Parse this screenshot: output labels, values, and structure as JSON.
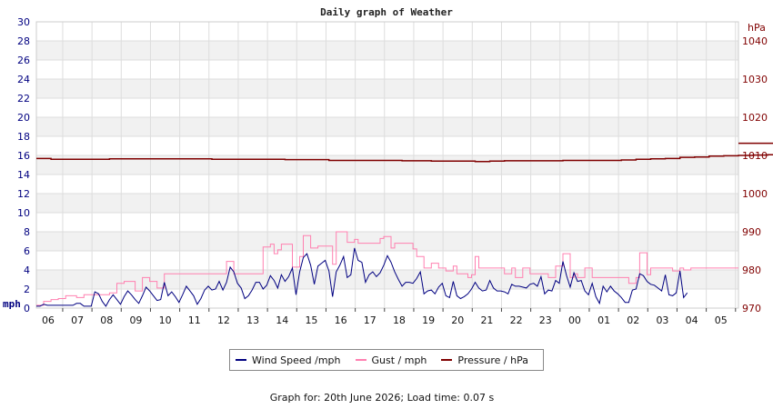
{
  "chart_data": {
    "type": "line",
    "title": "Daily graph of Weather",
    "left_unit": "mph",
    "right_unit": "hPa",
    "ylim_left": [
      0,
      30
    ],
    "yticks_left": [
      0,
      2,
      4,
      6,
      8,
      10,
      12,
      14,
      16,
      18,
      20,
      22,
      24,
      26,
      28,
      30
    ],
    "ylim_right": [
      970,
      1045
    ],
    "yticks_right": [
      970,
      980,
      990,
      1000,
      1010,
      1020,
      1030,
      1040
    ],
    "x_range_hours": [
      0,
      24
    ],
    "x_ticks": [
      "06",
      "07",
      "08",
      "09",
      "10",
      "11",
      "12",
      "13",
      "14",
      "15",
      "16",
      "17",
      "18",
      "19",
      "20",
      "21",
      "22",
      "23",
      "00",
      "01",
      "02",
      "03",
      "04",
      "05"
    ],
    "grid": true,
    "colors": {
      "wind": "#000080",
      "gust": "#ff80b0",
      "pressure": "#800000",
      "axis_left": "#000080",
      "axis_right": "#800000",
      "band": "#f1f1f1",
      "grid": "#dddddd"
    },
    "series": [
      {
        "name": "Wind Speed /mph",
        "axis": "left",
        "x_step_hours": 0.125,
        "values": [
          0.2,
          0.2,
          0.4,
          0.3,
          0.3,
          0.3,
          0.3,
          0.3,
          0.3,
          0.3,
          0.3,
          0.5,
          0.5,
          0.2,
          0.2,
          0.2,
          1.7,
          1.5,
          0.7,
          0.2,
          0.9,
          1.4,
          0.9,
          0.4,
          1.2,
          1.8,
          1.4,
          0.9,
          0.5,
          1.3,
          2.2,
          1.8,
          1.3,
          0.8,
          0.9,
          2.7,
          1.3,
          1.7,
          1.2,
          0.6,
          1.4,
          2.3,
          1.8,
          1.3,
          0.4,
          1.0,
          1.9,
          2.3,
          1.9,
          2.0,
          2.8,
          1.9,
          2.7,
          4.3,
          3.8,
          2.6,
          2.1,
          1.0,
          1.3,
          1.9,
          2.7,
          2.7,
          2.0,
          2.4,
          3.4,
          2.9,
          2.1,
          3.5,
          2.8,
          3.3,
          4.2,
          1.4,
          3.8,
          5.3,
          5.7,
          4.5,
          2.5,
          4.4,
          4.7,
          5.0,
          3.9,
          1.2,
          3.8,
          4.5,
          5.4,
          3.2,
          3.5,
          6.3,
          5.0,
          4.8,
          2.7,
          3.5,
          3.8,
          3.3,
          3.7,
          4.5,
          5.5,
          4.8,
          3.8,
          3.0,
          2.3,
          2.7,
          2.7,
          2.6,
          3.1,
          3.8,
          1.5,
          1.8,
          1.9,
          1.5,
          2.2,
          2.6,
          1.3,
          1.1,
          2.8,
          1.3,
          1.0,
          1.2,
          1.5,
          2.0,
          2.7,
          2.1,
          1.8,
          1.9,
          2.9,
          2.1,
          1.8,
          1.8,
          1.7,
          1.5,
          2.5,
          2.3,
          2.3,
          2.2,
          2.1,
          2.5,
          2.6,
          2.3,
          3.3,
          1.5,
          1.9,
          1.8,
          2.9,
          2.6,
          4.9,
          3.4,
          2.2,
          3.7,
          2.8,
          2.9,
          1.8,
          1.4,
          2.6,
          1.2,
          0.5,
          2.3,
          1.7,
          2.3,
          1.8,
          1.5,
          1.1,
          0.6,
          0.6,
          1.9,
          2.0,
          3.6,
          3.4,
          2.8,
          2.5,
          2.4,
          2.1,
          1.8,
          3.5,
          1.4,
          1.3,
          1.6,
          3.9,
          1.1,
          1.6
        ]
      },
      {
        "name": "Gust / mph",
        "axis": "left",
        "x_step_hours": 0.125,
        "values": [
          0.3,
          0.3,
          0.7,
          0.7,
          0.9,
          0.9,
          1.0,
          1.0,
          1.3,
          1.3,
          1.3,
          1.1,
          1.1,
          1.4,
          1.4,
          1.4,
          1.4,
          1.4,
          1.4,
          1.4,
          1.6,
          1.6,
          2.6,
          2.6,
          2.8,
          2.8,
          2.8,
          1.8,
          1.8,
          3.2,
          3.2,
          2.8,
          2.8,
          2.1,
          2.1,
          3.6,
          3.6,
          3.6,
          3.6,
          3.6,
          3.6,
          3.6,
          3.6,
          3.6,
          3.6,
          3.6,
          3.6,
          3.6,
          3.6,
          3.6,
          3.6,
          3.6,
          4.9,
          4.9,
          3.6,
          3.6,
          3.6,
          3.6,
          3.6,
          3.6,
          3.6,
          3.6,
          6.4,
          6.4,
          6.7,
          5.7,
          6.1,
          6.7,
          6.7,
          6.7,
          4.3,
          4.3,
          5.4,
          7.6,
          7.6,
          6.3,
          6.3,
          6.5,
          6.5,
          6.5,
          6.5,
          4.6,
          8.0,
          8.0,
          8.0,
          6.9,
          6.9,
          7.2,
          6.8,
          6.8,
          6.8,
          6.8,
          6.8,
          6.8,
          7.3,
          7.5,
          7.5,
          6.3,
          6.8,
          6.8,
          6.8,
          6.8,
          6.8,
          6.2,
          5.4,
          5.4,
          4.2,
          4.2,
          4.7,
          4.7,
          4.2,
          4.2,
          3.9,
          3.9,
          4.4,
          3.6,
          3.6,
          3.6,
          3.2,
          3.5,
          5.4,
          4.2,
          4.2,
          4.2,
          4.2,
          4.2,
          4.2,
          4.2,
          3.6,
          3.6,
          4.2,
          3.2,
          3.2,
          4.2,
          4.2,
          3.6,
          3.6,
          3.6,
          3.6,
          3.6,
          3.2,
          3.2,
          4.4,
          4.4,
          5.7,
          5.7,
          3.2,
          3.6,
          3.2,
          3.2,
          4.2,
          4.2,
          3.2,
          3.2,
          3.2,
          3.2,
          3.2,
          3.2,
          3.2,
          3.2,
          3.2,
          3.2,
          2.6,
          2.6,
          3.2,
          5.8,
          5.8,
          3.5,
          4.2,
          4.2,
          4.2,
          4.2,
          4.2,
          4.2,
          3.9,
          3.9,
          4.2,
          4.0,
          4.0,
          4.2,
          4.2
        ]
      },
      {
        "name": "Pressure / hPa",
        "axis": "right",
        "x_step_hours": 0.5,
        "values": [
          1009.2,
          1009.0,
          1009.0,
          1009.0,
          1009.0,
          1009.1,
          1009.1,
          1009.1,
          1009.1,
          1009.1,
          1009.1,
          1009.1,
          1009.0,
          1009.0,
          1009.0,
          1009.0,
          1009.0,
          1008.9,
          1008.9,
          1008.9,
          1008.7,
          1008.7,
          1008.7,
          1008.7,
          1008.7,
          1008.6,
          1008.6,
          1008.5,
          1008.5,
          1008.5,
          1008.4,
          1008.5,
          1008.6,
          1008.6,
          1008.6,
          1008.6,
          1008.7,
          1008.7,
          1008.7,
          1008.7,
          1008.8,
          1009.0,
          1009.1,
          1009.2,
          1009.5,
          1009.6,
          1009.8,
          1009.9,
          1010.0,
          1010.1,
          1010.2,
          1010.4,
          1010.6,
          1010.8,
          1010.8,
          1010.9,
          1011.0,
          1010.9,
          1011.1,
          1011.2,
          1011.2,
          1011.3,
          1011.4,
          1011.4,
          1011.6,
          1011.7,
          1011.8,
          1011.9,
          1012.0,
          1012.1,
          1012.2,
          1012.3,
          1012.4,
          1012.4,
          1012.5,
          1012.5,
          1012.5,
          1012.5,
          1012.6,
          1012.7,
          1012.7,
          1012.7,
          1012.8,
          1012.8,
          1012.9,
          1012.9,
          1012.9,
          1013.0,
          1013.0,
          1013.0,
          1013.0,
          1013.1,
          1013.1,
          1013.1,
          1013.2,
          1013.2,
          1013.2
        ]
      }
    ]
  },
  "legend": {
    "wind_label": "Wind Speed /mph",
    "gust_label": "Gust / mph",
    "pressure_label": "Pressure / hPa"
  },
  "footer": {
    "text": "Graph for: 20th June 2026; Load time: 0.07 s"
  }
}
